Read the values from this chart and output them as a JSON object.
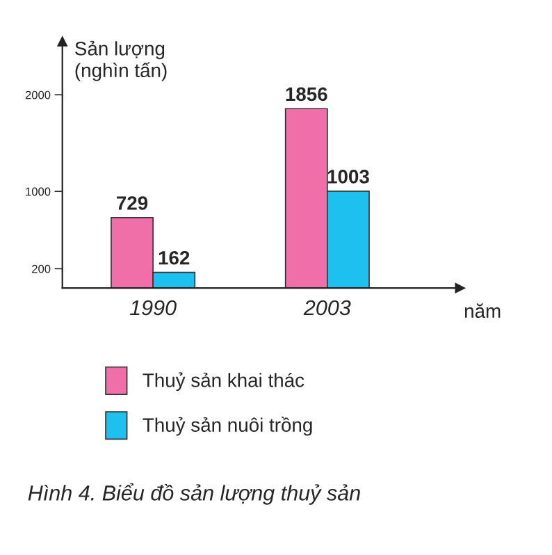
{
  "chart_data": {
    "type": "bar",
    "title": "Hình 4. Biểu đồ sản lượng thuỷ sản",
    "xlabel": "năm",
    "ylabel": "Sản lượng\n(nghìn tấn)",
    "categories": [
      "1990",
      "2003"
    ],
    "series": [
      {
        "name": "Thuỷ sản khai thác",
        "color": "#f06fa8",
        "values": [
          729,
          1856
        ]
      },
      {
        "name": "Thuỷ sản nuôi trồng",
        "color": "#1ec0f0",
        "values": [
          162,
          1003
        ]
      }
    ],
    "ylim": [
      0,
      2550
    ],
    "yticks": [
      200,
      1000,
      2000
    ],
    "data_labels": true,
    "legend": "bottom",
    "grid": false
  }
}
